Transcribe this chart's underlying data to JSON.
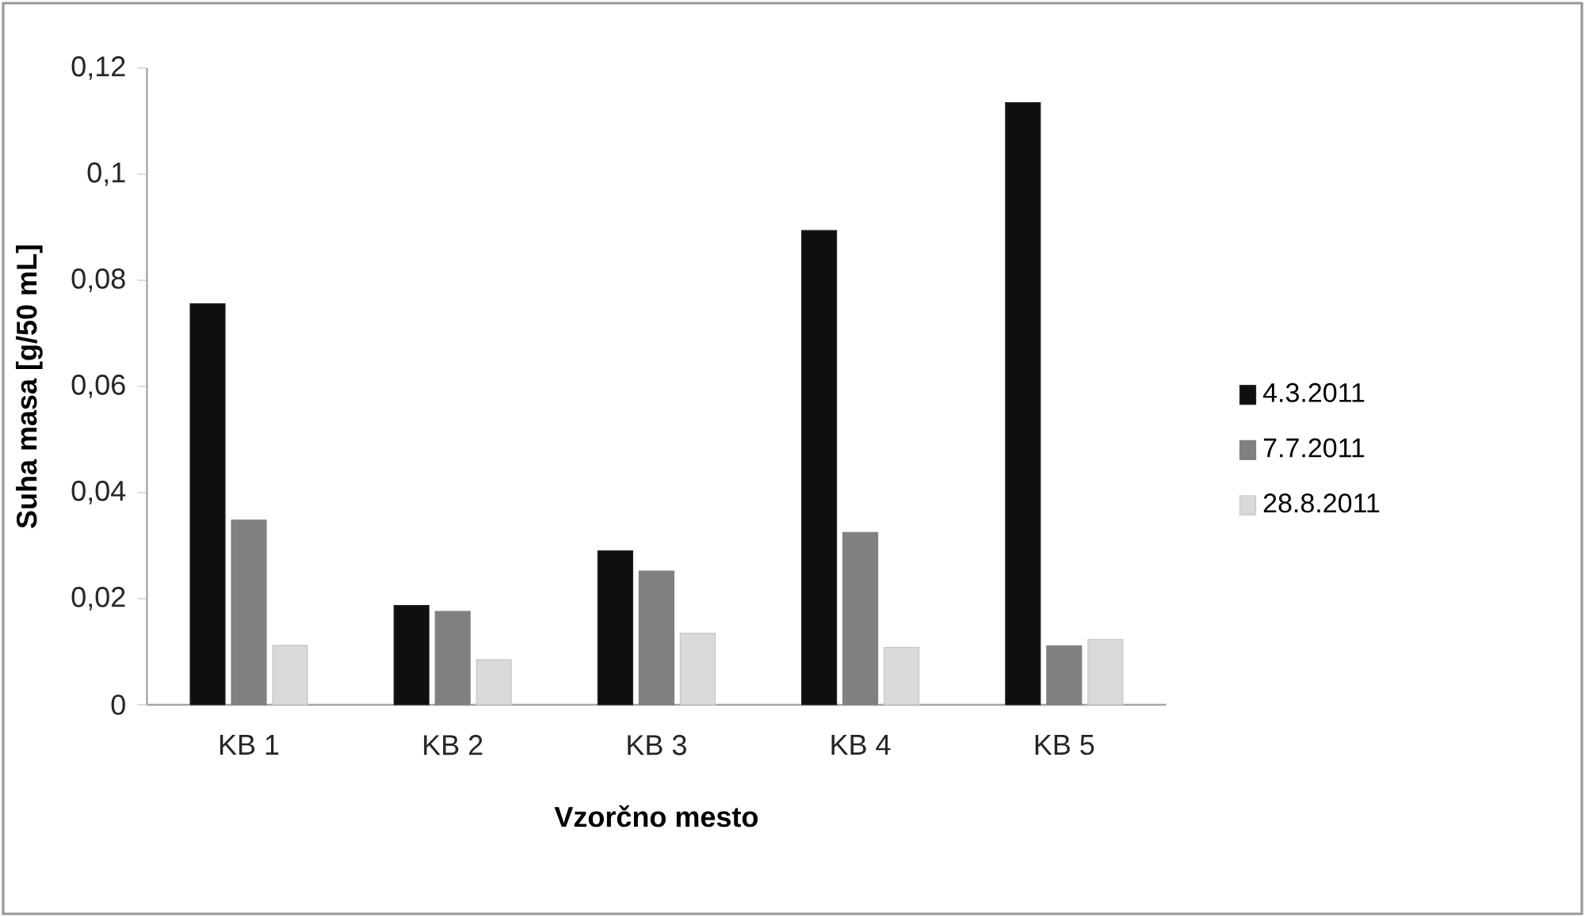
{
  "chart_data": {
    "type": "bar",
    "xlabel": "Vzorčno mesto",
    "ylabel": "Suha masa [g/50 mL]",
    "categories": [
      "KB 1",
      "KB 2",
      "KB 3",
      "KB 4",
      "KB 5"
    ],
    "series": [
      {
        "name": "4.3.2011",
        "color": "#0f0f0f",
        "values": [
          0.0756,
          0.0187,
          0.029,
          0.0894,
          0.1135
        ]
      },
      {
        "name": "7.7.2011",
        "color": "#808080",
        "values": [
          0.0348,
          0.0176,
          0.0252,
          0.0325,
          0.0111
        ]
      },
      {
        "name": "28.8.2011",
        "color": "#d9d9d9",
        "values": [
          0.0112,
          0.0085,
          0.0135,
          0.0108,
          0.0123
        ]
      }
    ],
    "ylim": [
      0,
      0.12
    ],
    "yticks": [
      0,
      {
        "value": 0.02,
        "label": "0,02"
      },
      {
        "value": 0.04,
        "label": "0,04"
      },
      {
        "value": 0.06,
        "label": "0,06"
      },
      {
        "value": 0.08,
        "label": "0,08"
      },
      {
        "value": 0.1,
        "label": "0,1"
      },
      {
        "value": 0.12,
        "label": "0,12"
      }
    ],
    "grid": false,
    "legend": "right"
  }
}
